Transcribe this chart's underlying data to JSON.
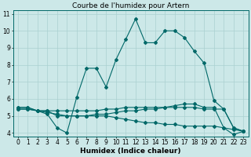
{
  "title": "Courbe de l'humidex pour Artern",
  "xlabel": "Humidex (Indice chaleur)",
  "bg_color": "#cce8e8",
  "line_color": "#006868",
  "grid_color": "#aad0d0",
  "xlim": [
    -0.5,
    23.5
  ],
  "ylim": [
    3.8,
    11.2
  ],
  "yticks": [
    4,
    5,
    6,
    7,
    8,
    9,
    10,
    11
  ],
  "xticks": [
    0,
    1,
    2,
    3,
    4,
    5,
    6,
    7,
    8,
    9,
    10,
    11,
    12,
    13,
    14,
    15,
    16,
    17,
    18,
    19,
    20,
    21,
    22,
    23
  ],
  "line1_x": [
    0,
    1,
    2,
    3,
    4,
    5,
    6,
    7,
    8,
    9,
    10,
    11,
    12,
    13,
    14,
    15,
    16,
    17,
    18,
    19,
    20,
    21,
    22,
    23
  ],
  "line1_y": [
    5.5,
    5.5,
    5.3,
    5.1,
    4.3,
    4.0,
    6.1,
    7.8,
    7.8,
    6.7,
    8.3,
    9.5,
    10.7,
    9.3,
    9.3,
    10.0,
    10.0,
    9.6,
    8.8,
    8.1,
    5.9,
    5.4,
    4.3,
    4.1
  ],
  "line2_x": [
    0,
    1,
    2,
    3,
    4,
    5,
    6,
    7,
    8,
    9,
    10,
    11,
    12,
    13,
    14,
    15,
    16,
    17,
    18,
    19,
    20,
    21,
    22,
    23
  ],
  "line2_y": [
    5.4,
    5.4,
    5.3,
    5.3,
    5.0,
    5.0,
    5.0,
    5.0,
    5.1,
    5.1,
    5.2,
    5.3,
    5.3,
    5.4,
    5.4,
    5.5,
    5.6,
    5.7,
    5.7,
    5.5,
    5.5,
    4.3,
    3.9,
    4.1
  ],
  "line3_x": [
    0,
    1,
    2,
    3,
    4,
    5,
    6,
    7,
    8,
    9,
    10,
    11,
    12,
    13,
    14,
    15,
    16,
    17,
    18,
    19,
    20,
    21,
    22,
    23
  ],
  "line3_y": [
    5.4,
    5.4,
    5.3,
    5.2,
    5.1,
    5.0,
    5.0,
    5.0,
    5.0,
    5.0,
    4.9,
    4.8,
    4.7,
    4.6,
    4.6,
    4.5,
    4.5,
    4.4,
    4.4,
    4.4,
    4.4,
    4.3,
    4.2,
    4.1
  ],
  "line4_x": [
    0,
    1,
    2,
    3,
    4,
    5,
    6,
    7,
    8,
    9,
    10,
    11,
    12,
    13,
    14,
    15,
    16,
    17,
    18,
    19,
    20,
    21,
    22,
    23
  ],
  "line4_y": [
    5.5,
    5.5,
    5.3,
    5.3,
    5.3,
    5.3,
    5.3,
    5.3,
    5.3,
    5.4,
    5.4,
    5.5,
    5.5,
    5.5,
    5.5,
    5.5,
    5.5,
    5.5,
    5.5,
    5.4,
    5.4,
    5.4,
    4.3,
    4.1
  ],
  "markersize": 2.0,
  "linewidth": 0.8,
  "title_fontsize": 6.5,
  "xlabel_fontsize": 6.5,
  "tick_fontsize": 5.5
}
